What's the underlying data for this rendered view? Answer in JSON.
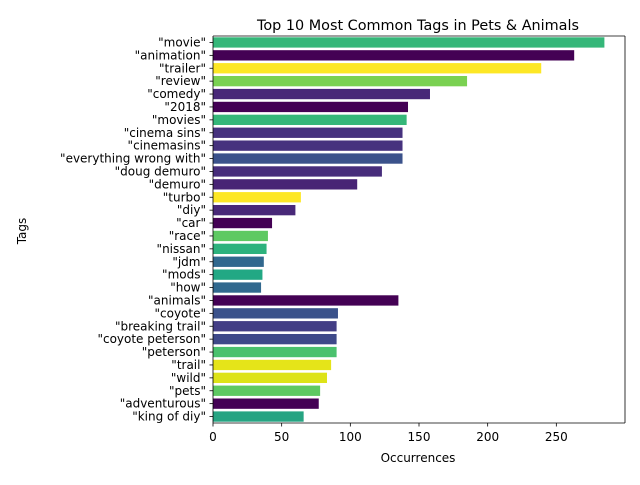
{
  "chart_data": {
    "type": "bar",
    "orientation": "horizontal",
    "title": "Top 10 Most Common Tags in Pets & Animals",
    "xlabel": "Occurrences",
    "ylabel": "Tags",
    "xlim": [
      0,
      300
    ],
    "xticks": [
      0,
      50,
      100,
      150,
      200,
      250
    ],
    "grid": false,
    "legend": "none",
    "categories": [
      "\"movie\"",
      "\"animation\"",
      "\"trailer\"",
      "\"review\"",
      "\"comedy\"",
      "\"2018\"",
      "\"movies\"",
      "\"cinema sins\"",
      "\"cinemasins\"",
      "\"everything wrong with\"",
      "\"doug demuro\"",
      "\"demuro\"",
      "\"turbo\"",
      "\"diy\"",
      "\"car\"",
      "\"race\"",
      "\"nissan\"",
      "\"jdm\"",
      "\"mods\"",
      "\"how\"",
      "\"animals\"",
      "\"coyote\"",
      "\"breaking trail\"",
      "\"coyote peterson\"",
      "\"peterson\"",
      "\"trail\"",
      "\"wild\"",
      "\"pets\"",
      "\"adventurous\"",
      "\"king of diy\""
    ],
    "values": [
      285,
      263,
      239,
      185,
      158,
      142,
      141,
      138,
      138,
      138,
      123,
      105,
      64,
      60,
      43,
      40,
      39,
      37,
      36,
      35,
      135,
      91,
      90,
      90,
      90,
      86,
      83,
      78,
      77,
      66
    ],
    "colors": [
      "#35b779",
      "#440154",
      "#fde725",
      "#7ad151",
      "#482878",
      "#440154",
      "#35b779",
      "#46327e",
      "#46327e",
      "#3b528b",
      "#472d7b",
      "#482475",
      "#fde725",
      "#482878",
      "#440154",
      "#5ec962",
      "#2db27d",
      "#31688e",
      "#22a884",
      "#31688e",
      "#440154",
      "#3b528b",
      "#433e85",
      "#3e4989",
      "#4ac16d",
      "#e5e419",
      "#dde318",
      "#5ec962",
      "#440154",
      "#26a482"
    ]
  }
}
